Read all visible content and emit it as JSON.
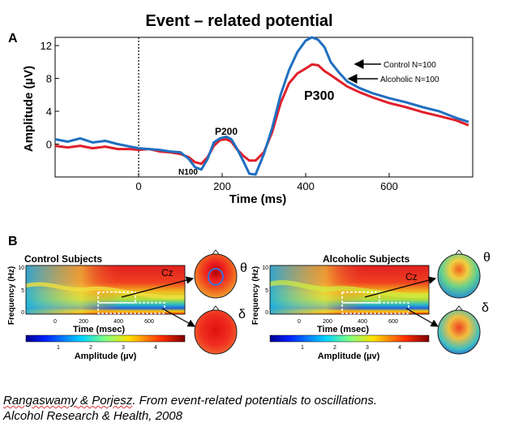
{
  "title": "Event – related potential",
  "panel_a": {
    "label": "A",
    "ylabel": "Amplitude (µV)",
    "xlabel": "Time (ms)",
    "annotations": {
      "n100": "N100",
      "p200": "P200",
      "p300": "P300"
    },
    "legend": {
      "control": "Control N=100",
      "alcoholic": "Alcoholic N=100"
    }
  },
  "panel_b": {
    "label": "B",
    "left": {
      "title": "Control Subjects",
      "electrode": "Cz",
      "ylabel": "Frequency (Hz)",
      "xlabel": "Time (msec)",
      "colorbar_label": "Amplitude (µv)",
      "theta_label": "θ",
      "delta_label": "δ"
    },
    "right": {
      "title": "Alcoholic Subjects",
      "electrode": "Cz",
      "ylabel": "Frequency (Hz)",
      "xlabel": "Time (msec)",
      "colorbar_label": "Amplitude (µv)",
      "theta_label": "θ",
      "delta_label": "δ"
    },
    "heatmap_yticks": [
      "10",
      "5",
      "0"
    ],
    "heatmap_xticks": [
      "0",
      "200",
      "400",
      "600"
    ],
    "colorbar_ticks": [
      "1",
      "2",
      "3",
      "4"
    ]
  },
  "citation": {
    "authors": "Rangaswamy & Porjesz",
    "title": "From event-related potentials to oscillations.",
    "journal": "Alcohol Research & Health, 2008"
  },
  "colors": {
    "control": "#1f6fc0",
    "alcoholic": "#e0202a"
  },
  "chart_data": [
    {
      "type": "line",
      "title": "Event – related potential",
      "xlabel": "Time (ms)",
      "ylabel": "Amplitude (µV)",
      "xlim": [
        -200,
        800
      ],
      "ylim": [
        -4,
        13
      ],
      "xticks": [
        0,
        200,
        400,
        600
      ],
      "yticks": [
        0,
        4,
        8,
        12
      ],
      "stimulus_line_x": 0,
      "series": [
        {
          "name": "Control N=100",
          "color": "#1f6fc0",
          "x": [
            -200,
            -170,
            -140,
            -110,
            -80,
            -50,
            -20,
            0,
            25,
            50,
            75,
            100,
            120,
            135,
            150,
            165,
            180,
            195,
            210,
            222,
            235,
            250,
            265,
            280,
            300,
            320,
            340,
            360,
            380,
            400,
            415,
            430,
            445,
            460,
            480,
            500,
            530,
            560,
            600,
            640,
            680,
            720,
            760,
            790
          ],
          "y": [
            0.6,
            0.3,
            0.7,
            0.2,
            0.4,
            0.0,
            -0.3,
            -0.5,
            -0.6,
            -0.7,
            -0.9,
            -1.0,
            -1.8,
            -2.8,
            -3.1,
            -1.8,
            0.2,
            0.7,
            0.9,
            0.6,
            -0.5,
            -2.0,
            -3.6,
            -3.7,
            -1.2,
            2.0,
            6.0,
            9.0,
            11.2,
            12.6,
            13.0,
            12.7,
            11.8,
            10.0,
            8.7,
            7.6,
            6.8,
            6.2,
            5.6,
            5.1,
            4.5,
            4.0,
            3.2,
            2.7
          ]
        },
        {
          "name": "Alcoholic N=100",
          "color": "#e0202a",
          "x": [
            -200,
            -170,
            -140,
            -110,
            -80,
            -50,
            -20,
            0,
            25,
            50,
            75,
            100,
            120,
            135,
            150,
            165,
            180,
            195,
            210,
            222,
            235,
            250,
            265,
            280,
            300,
            320,
            340,
            360,
            380,
            400,
            415,
            430,
            445,
            460,
            480,
            500,
            530,
            560,
            600,
            640,
            680,
            720,
            760,
            790
          ],
          "y": [
            -0.2,
            -0.4,
            -0.2,
            -0.5,
            -0.3,
            -0.6,
            -0.6,
            -0.7,
            -0.6,
            -0.9,
            -1.0,
            -1.2,
            -1.6,
            -2.2,
            -2.4,
            -1.6,
            -0.2,
            0.5,
            0.6,
            0.3,
            -0.6,
            -1.4,
            -2.0,
            -2.0,
            -1.0,
            1.5,
            5.0,
            7.4,
            8.6,
            9.2,
            9.7,
            9.6,
            8.9,
            8.4,
            7.7,
            7.0,
            6.3,
            5.7,
            5.0,
            4.5,
            3.9,
            3.4,
            2.9,
            2.3
          ]
        }
      ]
    },
    {
      "type": "heatmap",
      "title": "Control Subjects",
      "xlabel": "Time (msec)",
      "ylabel": "Frequency (Hz)",
      "xticks": [
        0,
        200,
        400,
        600
      ],
      "yticks": [
        0,
        5,
        10
      ],
      "colorbar_label": "Amplitude (µv)",
      "colorbar_ticks": [
        1,
        2,
        3,
        4
      ]
    },
    {
      "type": "heatmap",
      "title": "Alcoholic Subjects",
      "xlabel": "Time (msec)",
      "ylabel": "Frequency (Hz)",
      "xticks": [
        0,
        200,
        400,
        600
      ],
      "yticks": [
        0,
        5,
        10
      ],
      "colorbar_label": "Amplitude (µv)",
      "colorbar_ticks": [
        1,
        2,
        3,
        4
      ]
    }
  ]
}
